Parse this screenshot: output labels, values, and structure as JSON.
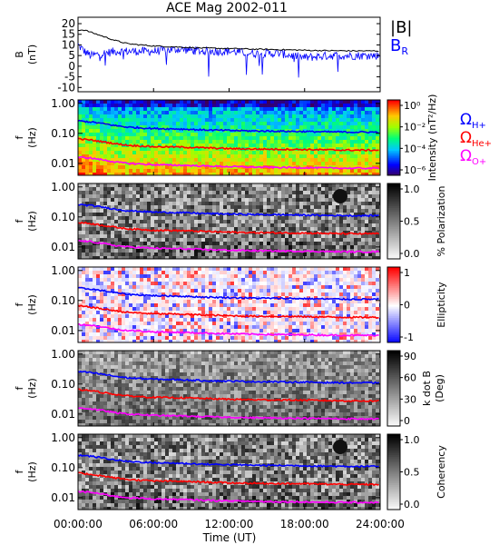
{
  "title": "ACE Mag 2002-011",
  "x_axis": {
    "label": "Time (UT)",
    "ticks": [
      "00:00:00",
      "06:00:00",
      "12:00:00",
      "18:00:00",
      "24:00:00"
    ],
    "range_hours": [
      0,
      24
    ]
  },
  "freq_ticks": [
    "1.00",
    "0.10",
    "0.01"
  ],
  "panels": {
    "b": {
      "ylabel_1": "B",
      "ylabel_2": "(nT)",
      "ticks": [
        "20",
        "15",
        "10",
        "5",
        "0",
        "-5",
        "-10"
      ],
      "ylim": [
        -12,
        23
      ],
      "legend_total": "|B|",
      "legend_r": "B",
      "legend_r_sub": "R"
    },
    "intensity": {
      "ylabel_1": "f",
      "ylabel_2": "(Hz)",
      "cb_label": "Intensity (nT²/Hz)",
      "cb_ticks": [
        "10⁰",
        "10⁻²",
        "10⁻⁴",
        "10⁻⁶"
      ],
      "gyro": [
        {
          "label": "Ω",
          "sub": "H+",
          "color": "#0000ff"
        },
        {
          "label": "Ω",
          "sub": "He+",
          "color": "#ff0000"
        },
        {
          "label": "Ω",
          "sub": "O+",
          "color": "#ff00ff"
        }
      ]
    },
    "polarization": {
      "ylabel_1": "f",
      "ylabel_2": "(Hz)",
      "cb_label": "% Polarization",
      "cb_ticks": [
        "1.0",
        "0.5",
        "0.0"
      ]
    },
    "ellipticity": {
      "ylabel_1": "f",
      "ylabel_2": "(Hz)",
      "cb_label": "Ellipticity",
      "cb_ticks": [
        "1",
        "0",
        "-1"
      ]
    },
    "kdotb": {
      "ylabel_1": "f",
      "ylabel_2": "(Hz)",
      "cb_label_1": "k dot B",
      "cb_label_2": "(Deg)",
      "cb_ticks": [
        "90",
        "60",
        "30",
        "0"
      ]
    },
    "coherency": {
      "ylabel_1": "f",
      "ylabel_2": "(Hz)",
      "cb_label": "Coherency",
      "cb_ticks": [
        "1.0",
        "0.5",
        "0.0"
      ]
    }
  },
  "chart_data": {
    "type": "line",
    "title": "ACE Mag 2002-011",
    "xlabel": "Time (UT)",
    "x_hours": [
      0,
      0.5,
      1,
      2,
      3,
      4,
      6,
      8,
      10,
      12,
      14,
      16,
      18,
      20,
      22,
      24
    ],
    "series": [
      {
        "name": "|B|",
        "color": "#000000",
        "values": [
          17,
          17,
          16,
          14,
          12,
          10.5,
          9.5,
          9,
          8.5,
          8.3,
          8,
          7.8,
          7.5,
          7.3,
          7.2,
          7.2
        ]
      },
      {
        "name": "BR",
        "color": "#0000ff",
        "values": [
          10,
          7,
          5,
          6,
          7,
          7,
          7,
          8,
          7,
          7,
          6,
          6,
          4,
          5,
          5,
          5
        ]
      },
      {
        "name": "ΩH+",
        "color": "#0000ff",
        "unit": "Hz",
        "values": [
          0.26,
          0.25,
          0.24,
          0.21,
          0.18,
          0.16,
          0.145,
          0.14,
          0.13,
          0.125,
          0.12,
          0.118,
          0.115,
          0.112,
          0.11,
          0.11
        ]
      },
      {
        "name": "ΩHe+",
        "color": "#ff0000",
        "unit": "Hz",
        "values": [
          0.065,
          0.063,
          0.06,
          0.052,
          0.045,
          0.04,
          0.036,
          0.035,
          0.033,
          0.031,
          0.03,
          0.0295,
          0.029,
          0.028,
          0.0275,
          0.0275
        ]
      },
      {
        "name": "ΩO+",
        "color": "#ff00ff",
        "unit": "Hz",
        "values": [
          0.016,
          0.0155,
          0.015,
          0.013,
          0.011,
          0.01,
          0.009,
          0.0087,
          0.0082,
          0.0078,
          0.0075,
          0.0073,
          0.0072,
          0.007,
          0.0069,
          0.0069
        ]
      }
    ],
    "freq_ylim_hz": [
      0.004,
      1.3
    ],
    "freq_scale": "log"
  }
}
